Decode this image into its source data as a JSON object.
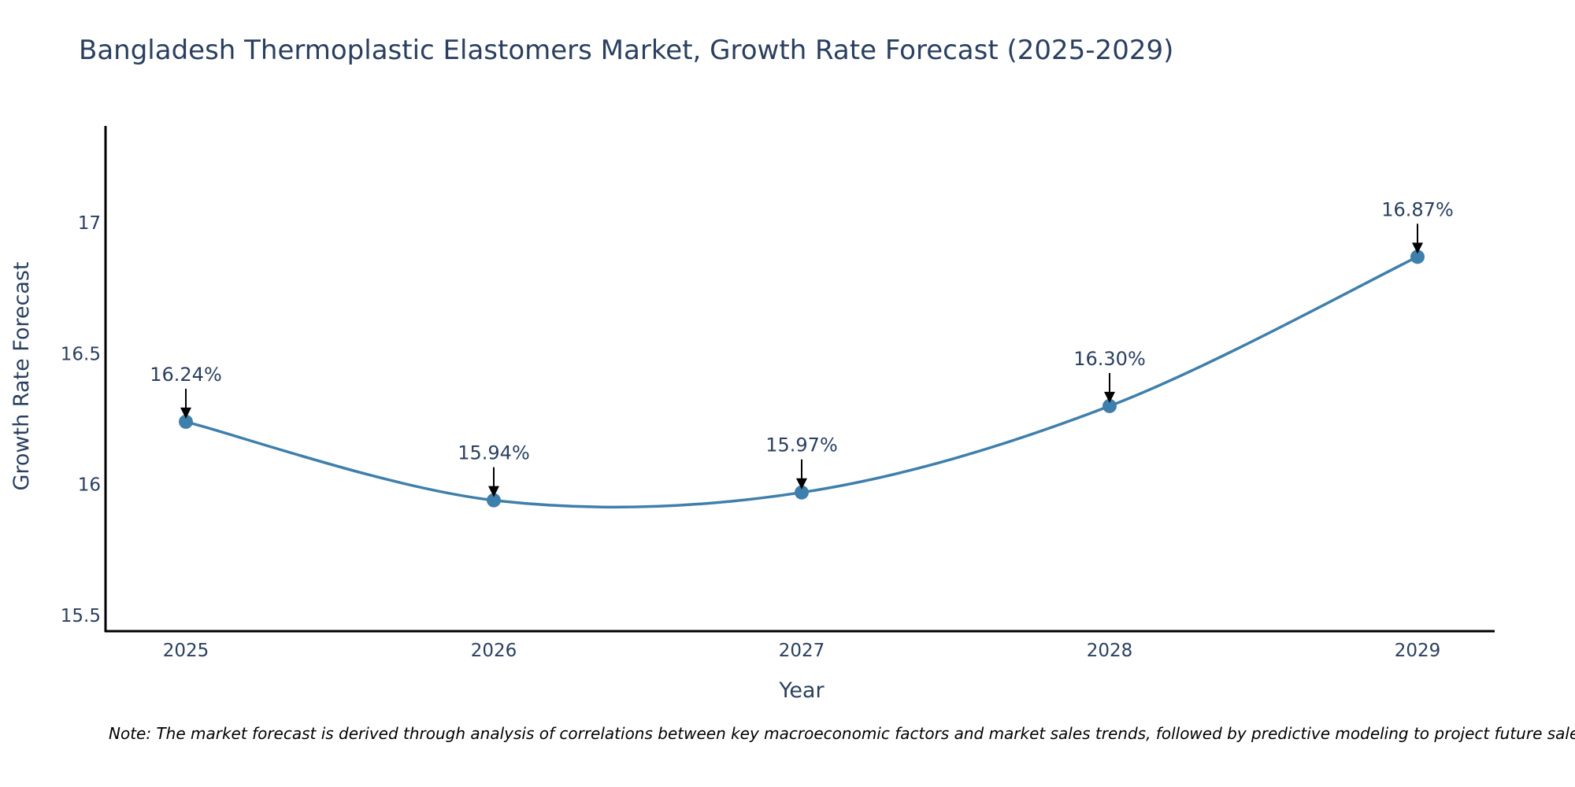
{
  "chart_data": {
    "type": "line",
    "title": "Bangladesh Thermoplastic Elastomers Market, Growth Rate Forecast (2025-2029)",
    "xlabel": "Year",
    "ylabel": "Growth Rate Forecast",
    "categories": [
      "2025",
      "2026",
      "2027",
      "2028",
      "2029"
    ],
    "values": [
      16.24,
      15.94,
      15.97,
      16.3,
      16.87
    ],
    "data_labels": [
      "16.24%",
      "15.94%",
      "15.97%",
      "16.30%",
      "16.87%"
    ],
    "yticks": [
      15.5,
      16,
      16.5,
      17
    ],
    "ytick_labels": [
      "15.5",
      "16",
      "16.5",
      "17"
    ],
    "ylim": [
      15.44,
      17.37
    ],
    "line_shape": "spline",
    "grid": false,
    "legend": "none",
    "note": "Note: The market forecast is derived through analysis of correlations between key macroeconomic factors and market sales trends, followed by predictive modeling to project future sales."
  },
  "colors": {
    "line": "#3f7fab",
    "marker": "#3f7fab",
    "axis": "#000000",
    "text": "#2a3f5f",
    "arrow": "#000000"
  }
}
